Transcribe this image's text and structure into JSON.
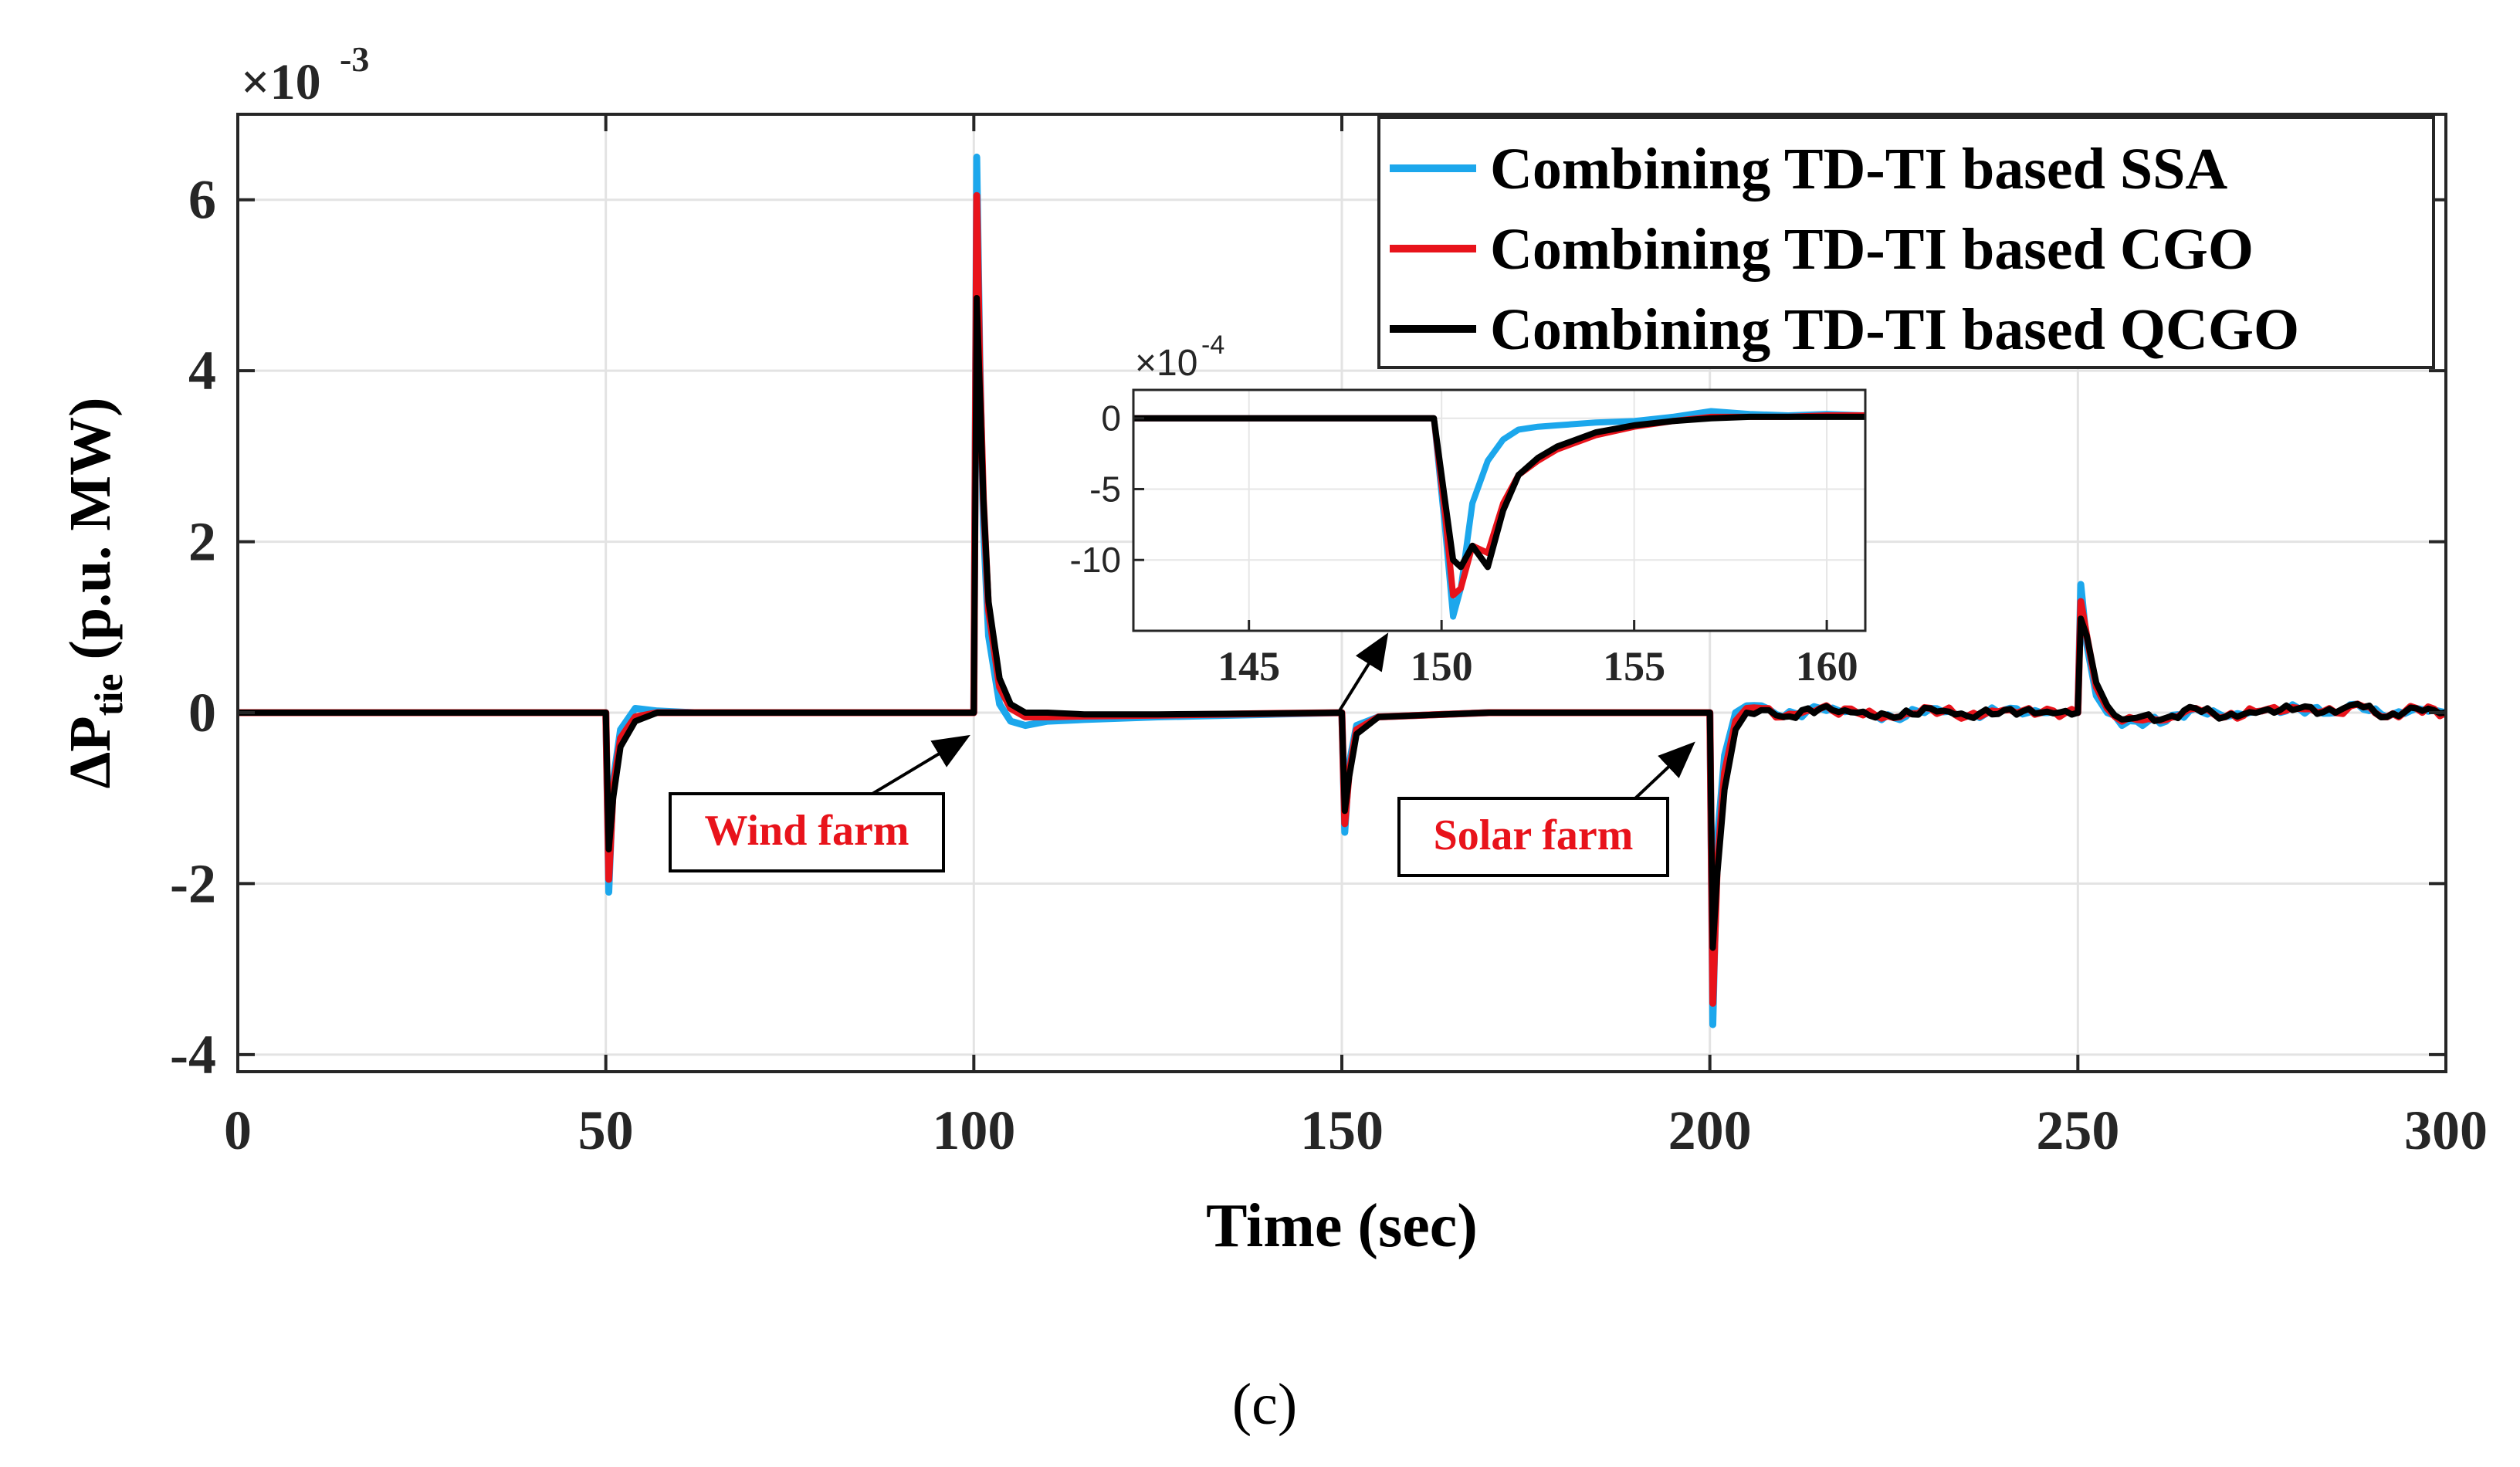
{
  "chart_data": {
    "type": "line",
    "title": "",
    "xlabel": "Time (sec)",
    "ylabel_main": "ΔP",
    "ylabel_sub": "tie",
    "ylabel_unit": "(p.u. MW)",
    "xlim": [
      0,
      300
    ],
    "ylim": [
      -4.2,
      7.0
    ],
    "y_scale_base": "×10",
    "y_scale_exp": "-3",
    "x_ticks": [
      0,
      50,
      100,
      150,
      200,
      250,
      300
    ],
    "x_tick_labels": [
      "0",
      "50",
      "100",
      "150",
      "200",
      "250",
      "300"
    ],
    "y_ticks": [
      -4,
      -2,
      0,
      2,
      4,
      6
    ],
    "y_tick_labels": [
      "-4",
      "-2",
      "0",
      "2",
      "4",
      "6"
    ],
    "grid": true,
    "legend_position": "top-right",
    "series": [
      {
        "name": "Combining TD-TI based SSA",
        "color": "#1ca7ec",
        "x": [
          0,
          50,
          50.4,
          51.0,
          52,
          54,
          57,
          62,
          100,
          100.4,
          100.8,
          101.3,
          102,
          103.5,
          105,
          107,
          110,
          115,
          125,
          140,
          150,
          150.4,
          151.0,
          152.0,
          155,
          170,
          200,
          200.4,
          201.0,
          202.0,
          203.5,
          205,
          207,
          210,
          215,
          220,
          225,
          230,
          235,
          240,
          245,
          250,
          250.4,
          251.2,
          252.5,
          254,
          256,
          258,
          262,
          266,
          270,
          275,
          280,
          285,
          288,
          292,
          296,
          300
        ],
        "y": [
          0,
          0,
          -2.1,
          -0.8,
          -0.2,
          0.05,
          0.02,
          0,
          0,
          6.5,
          4.2,
          2.2,
          0.9,
          0.1,
          -0.1,
          -0.15,
          -0.1,
          -0.08,
          -0.05,
          -0.02,
          0,
          -1.4,
          -0.6,
          -0.15,
          -0.05,
          0,
          0,
          -3.65,
          -1.5,
          -0.5,
          0.0,
          0.08,
          0.08,
          -0.05,
          0.05,
          0.0,
          -0.06,
          0.05,
          -0.04,
          0.03,
          0.0,
          0.0,
          1.5,
          0.8,
          0.2,
          0.0,
          -0.15,
          -0.1,
          -0.1,
          0.05,
          -0.05,
          0.02,
          0.05,
          0.0,
          0.1,
          -0.05,
          0.05,
          0.0
        ]
      },
      {
        "name": "Combining TD-TI based CGO",
        "color": "#e8131b",
        "x": [
          0,
          50,
          50.4,
          51.0,
          52,
          54,
          57,
          62,
          100,
          100.4,
          100.8,
          101.3,
          102,
          103.5,
          105,
          107,
          110,
          115,
          125,
          140,
          150,
          150.4,
          151.0,
          152.0,
          155,
          170,
          200,
          200.4,
          201.0,
          202.0,
          203.5,
          205,
          207,
          210,
          215,
          220,
          225,
          230,
          235,
          240,
          245,
          250,
          250.4,
          251.2,
          252.5,
          254,
          256,
          258,
          262,
          266,
          270,
          275,
          280,
          285,
          288,
          292,
          296,
          300
        ],
        "y": [
          0,
          0,
          -1.95,
          -0.9,
          -0.3,
          -0.05,
          0,
          0,
          0,
          6.05,
          4.0,
          2.5,
          1.2,
          0.3,
          0.05,
          -0.05,
          -0.05,
          -0.04,
          -0.03,
          -0.01,
          0,
          -1.3,
          -0.7,
          -0.2,
          -0.05,
          0,
          0,
          -3.4,
          -1.8,
          -0.7,
          -0.1,
          0.05,
          0.05,
          -0.05,
          0.05,
          0.0,
          -0.06,
          0.05,
          -0.04,
          0.03,
          0.0,
          0.0,
          1.3,
          0.9,
          0.3,
          0.05,
          -0.1,
          -0.08,
          -0.08,
          0.05,
          -0.05,
          0.02,
          0.05,
          0.0,
          0.1,
          -0.05,
          0.05,
          0.0
        ]
      },
      {
        "name": "Combining TD-TI based QCGO",
        "color": "#000000",
        "x": [
          0,
          50,
          50.4,
          51.0,
          52,
          54,
          57,
          62,
          100,
          100.4,
          100.8,
          101.3,
          102,
          103.5,
          105,
          107,
          110,
          115,
          125,
          140,
          150,
          150.4,
          151.0,
          152.0,
          155,
          170,
          200,
          200.4,
          201.0,
          202.0,
          203.5,
          205,
          207,
          210,
          215,
          220,
          225,
          230,
          235,
          240,
          245,
          250,
          250.4,
          251.2,
          252.5,
          254,
          256,
          258,
          262,
          266,
          270,
          275,
          280,
          285,
          288,
          292,
          296,
          300
        ],
        "y": [
          0,
          0,
          -1.6,
          -1.0,
          -0.4,
          -0.1,
          0,
          0,
          0,
          4.85,
          3.8,
          2.5,
          1.3,
          0.4,
          0.1,
          0.0,
          0.0,
          -0.02,
          -0.02,
          -0.01,
          0,
          -1.15,
          -0.75,
          -0.25,
          -0.05,
          0,
          0,
          -2.75,
          -1.9,
          -0.9,
          -0.2,
          0.0,
          0.03,
          -0.05,
          0.05,
          0.0,
          -0.06,
          0.05,
          -0.04,
          0.03,
          0.0,
          0.0,
          1.1,
          0.9,
          0.35,
          0.08,
          -0.08,
          -0.06,
          -0.06,
          0.05,
          -0.05,
          0.02,
          0.05,
          0.0,
          0.1,
          -0.05,
          0.05,
          0.0
        ]
      }
    ],
    "inset": {
      "xlim": [
        142,
        161
      ],
      "ylim": [
        -15,
        2
      ],
      "x_ticks": [
        145,
        150,
        155,
        160
      ],
      "x_tick_labels": [
        "145",
        "150",
        "155",
        "160"
      ],
      "y_ticks": [
        -10,
        -5,
        0
      ],
      "y_tick_labels": [
        "-10",
        "-5",
        "0"
      ],
      "y_scale_base": "×10",
      "y_scale_exp": "-4",
      "series": [
        {
          "name": "Combining TD-TI based SSA",
          "color": "#1ca7ec",
          "x": [
            142,
            145,
            148,
            149.8,
            150.1,
            150.3,
            150.5,
            150.8,
            151.2,
            151.6,
            152.0,
            152.5,
            153.0,
            154,
            155,
            156,
            157,
            158,
            159,
            160,
            161
          ],
          "y": [
            0,
            0,
            0,
            0,
            -8,
            -14,
            -12,
            -6,
            -3,
            -1.5,
            -0.8,
            -0.6,
            -0.5,
            -0.3,
            -0.2,
            0.1,
            0.5,
            0.3,
            0.2,
            0.3,
            0.2
          ]
        },
        {
          "name": "Combining TD-TI based CGO",
          "color": "#e8131b",
          "x": [
            142,
            145,
            148,
            149.8,
            150.1,
            150.3,
            150.5,
            150.8,
            151.2,
            151.6,
            152.0,
            152.5,
            153.0,
            154,
            155,
            156,
            157,
            158,
            159,
            160,
            161
          ],
          "y": [
            0,
            0,
            0,
            0,
            -7,
            -12.5,
            -12,
            -9,
            -9.5,
            -6,
            -4,
            -3,
            -2.2,
            -1.2,
            -0.6,
            -0.2,
            0.1,
            0.1,
            0.1,
            0.2,
            0.2
          ]
        },
        {
          "name": "Combining TD-TI based QCGO",
          "color": "#000000",
          "x": [
            142,
            145,
            148,
            149.8,
            150.1,
            150.3,
            150.5,
            150.8,
            151.2,
            151.6,
            152.0,
            152.5,
            153.0,
            154,
            155,
            156,
            157,
            158,
            159,
            160,
            161
          ],
          "y": [
            0,
            0,
            0,
            0,
            -6,
            -10,
            -10.5,
            -9,
            -10.5,
            -6.5,
            -4,
            -2.8,
            -2,
            -1,
            -0.5,
            -0.2,
            0.0,
            0.1,
            0.1,
            0.1,
            0.1
          ]
        }
      ]
    },
    "annotations": [
      {
        "text": "Wind farm",
        "color": "#e8131b",
        "arrow_to_x": 100,
        "arrow_to_y": 0
      },
      {
        "text": "Solar farm",
        "color": "#e8131b",
        "arrow_to_x": 200,
        "arrow_to_y": 0
      }
    ]
  },
  "caption": "(c)"
}
